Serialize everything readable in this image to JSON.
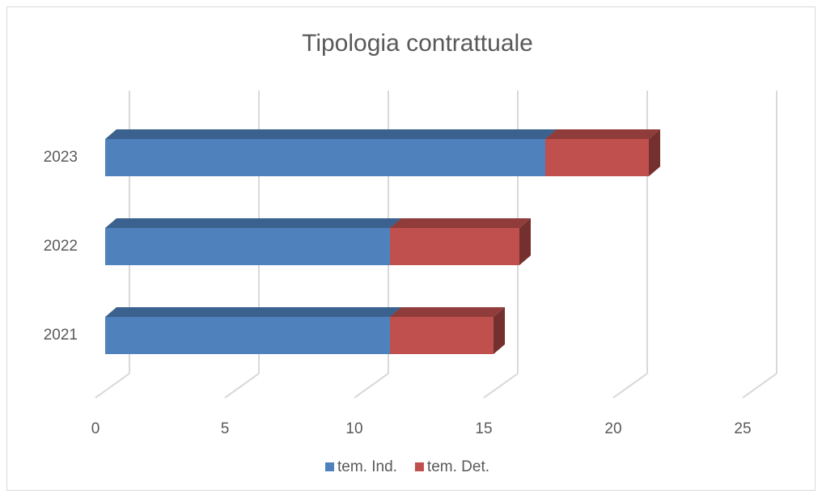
{
  "chart_data": {
    "type": "bar3d_stacked_horizontal",
    "title": "Tipologia contrattuale",
    "categories": [
      "2021",
      "2022",
      "2023"
    ],
    "series": [
      {
        "name": "tem. Ind.",
        "color": "#4f81bd",
        "values": [
          11,
          11,
          17
        ]
      },
      {
        "name": "tem. Det.",
        "color": "#c0504d",
        "values": [
          4,
          5,
          4
        ]
      }
    ],
    "xlim": [
      0,
      25
    ],
    "xticks": [
      0,
      5,
      10,
      15,
      20,
      25
    ],
    "grid": true,
    "legend": "bottom"
  }
}
